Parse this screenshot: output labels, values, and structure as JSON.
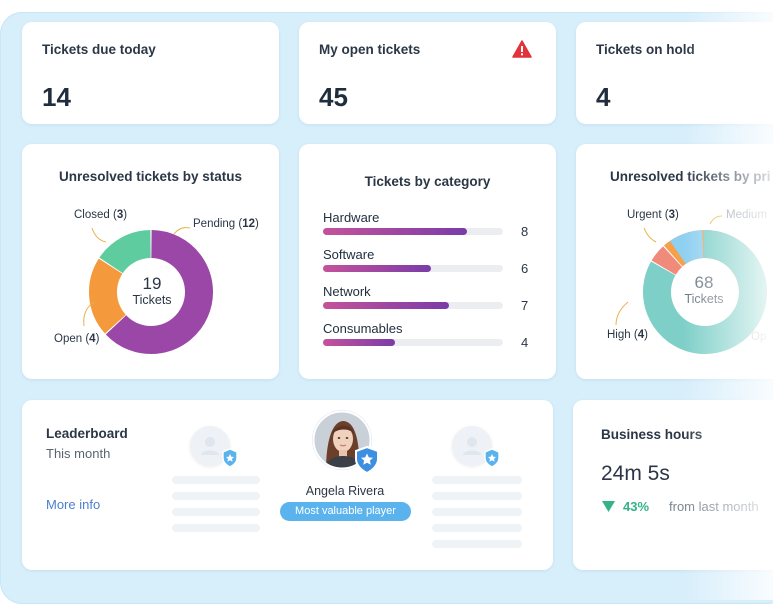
{
  "kpis": [
    {
      "title": "Tickets due today",
      "value": "14"
    },
    {
      "title": "My open tickets",
      "value": "45",
      "icon": "alert-icon"
    },
    {
      "title": "Tickets on hold",
      "value": "4"
    }
  ],
  "status_chart": {
    "title": "Unresolved tickets by status",
    "total": "19",
    "total_label": "Tickets",
    "slices": [
      {
        "name": "Pending",
        "value": 12,
        "color": "#9b47a8"
      },
      {
        "name": "Open",
        "value": 4,
        "color": "#f59a3c"
      },
      {
        "name": "Closed",
        "value": 3,
        "color": "#5fcca0"
      }
    ]
  },
  "category_chart": {
    "title": "Tickets by category",
    "max": 10,
    "items": [
      {
        "name": "Hardware",
        "value": 8
      },
      {
        "name": "Software",
        "value": 6
      },
      {
        "name": "Network",
        "value": 7
      },
      {
        "name": "Consumables",
        "value": 4
      }
    ]
  },
  "priority_chart": {
    "title": "Unresolved tickets by pri",
    "total": "68",
    "total_label": "Tickets",
    "slices": [
      {
        "name": "Urgent",
        "value": 3,
        "color": "#f08a7a"
      },
      {
        "name": "High",
        "value": 4,
        "color": "#f5a04a"
      },
      {
        "name": "Medium",
        "value": null,
        "label": "Medium",
        "color": "#8fd0f0"
      },
      {
        "name": "Op",
        "value": null,
        "label": "Op",
        "color": "#7ecfc8"
      }
    ]
  },
  "leaderboard": {
    "title": "Leaderboard",
    "period": "This month",
    "link": "More info",
    "top_name": "Angela Rivera",
    "top_badge": "Most valuable player"
  },
  "business_hours": {
    "title": "Business hours",
    "value": "24m 5s",
    "change": "43%",
    "change_direction": "down",
    "change_color": "#34b38a",
    "comparison": "from last month"
  },
  "chart_data": [
    {
      "type": "pie",
      "title": "Unresolved tickets by status",
      "categories": [
        "Pending",
        "Open",
        "Closed"
      ],
      "values": [
        12,
        4,
        3
      ]
    },
    {
      "type": "bar",
      "title": "Tickets by category",
      "categories": [
        "Hardware",
        "Software",
        "Network",
        "Consumables"
      ],
      "values": [
        8,
        6,
        7,
        4
      ]
    },
    {
      "type": "pie",
      "title": "Unresolved tickets by pri",
      "categories": [
        "Urgent",
        "High",
        "Medium",
        "Op"
      ],
      "values": [
        3,
        4,
        null,
        null
      ]
    }
  ]
}
